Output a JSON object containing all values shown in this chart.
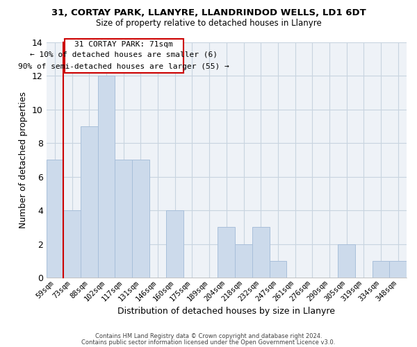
{
  "title": "31, CORTAY PARK, LLANYRE, LLANDRINDOD WELLS, LD1 6DT",
  "subtitle": "Size of property relative to detached houses in Llanyre",
  "xlabel": "Distribution of detached houses by size in Llanyre",
  "ylabel": "Number of detached properties",
  "bar_color": "#ccdaeb",
  "bar_edgecolor": "#a8bfda",
  "bin_labels": [
    "59sqm",
    "73sqm",
    "88sqm",
    "102sqm",
    "117sqm",
    "131sqm",
    "146sqm",
    "160sqm",
    "175sqm",
    "189sqm",
    "204sqm",
    "218sqm",
    "232sqm",
    "247sqm",
    "261sqm",
    "276sqm",
    "290sqm",
    "305sqm",
    "319sqm",
    "334sqm",
    "348sqm"
  ],
  "counts": [
    7,
    4,
    9,
    12,
    7,
    7,
    0,
    4,
    0,
    0,
    3,
    2,
    3,
    1,
    0,
    0,
    0,
    2,
    0,
    1,
    1
  ],
  "ylim": [
    0,
    14
  ],
  "yticks": [
    0,
    2,
    4,
    6,
    8,
    10,
    12,
    14
  ],
  "annotation_title": "31 CORTAY PARK: 71sqm",
  "annotation_line1": "← 10% of detached houses are smaller (6)",
  "annotation_line2": "90% of semi-detached houses are larger (55) →",
  "marker_color": "#cc0000",
  "footer1": "Contains HM Land Registry data © Crown copyright and database right 2024.",
  "footer2": "Contains public sector information licensed under the Open Government Licence v3.0.",
  "grid_color": "#c8d4e0",
  "background_color": "#eef2f7"
}
